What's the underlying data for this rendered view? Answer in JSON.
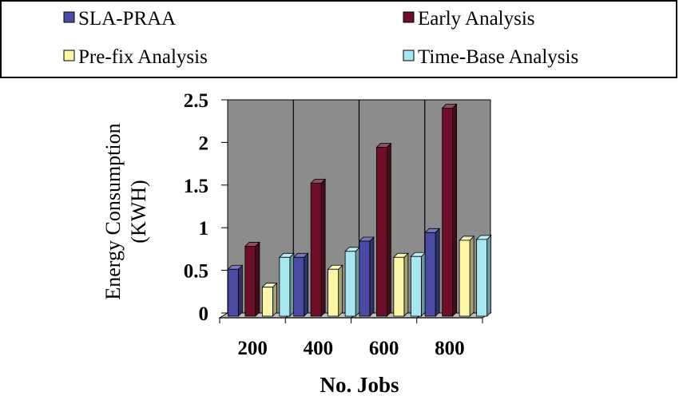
{
  "chart_data": {
    "type": "bar",
    "title": "",
    "categories": [
      "200",
      "400",
      "600",
      "800"
    ],
    "series": [
      {
        "name": "SLA-PRAA",
        "values": [
          0.55,
          0.69,
          0.88,
          0.98
        ],
        "color": "#4b4ba3"
      },
      {
        "name": "Early Analysis",
        "values": [
          0.82,
          1.56,
          1.98,
          2.44
        ],
        "color": "#6e0f2a"
      },
      {
        "name": "Pre-fix Analysis",
        "values": [
          0.34,
          0.55,
          0.69,
          0.89
        ],
        "color": "#fbf6a8"
      },
      {
        "name": "Time-Base Analysis",
        "values": [
          0.69,
          0.76,
          0.7,
          0.9
        ],
        "color": "#a8e6f0"
      }
    ],
    "xlabel": "No. Jobs",
    "ylabel_lines": [
      "Energy Consumption",
      "(KWH)"
    ],
    "ylim": [
      0,
      2.5
    ],
    "yticks": [
      "0",
      "0.5",
      "1",
      "1.5",
      "2",
      "2.5"
    ],
    "grid": true,
    "legend_position": "top",
    "colors": {
      "plot_wall": "#8c8c8c",
      "floor": "#bdbdbd",
      "outline": "#000000"
    }
  }
}
